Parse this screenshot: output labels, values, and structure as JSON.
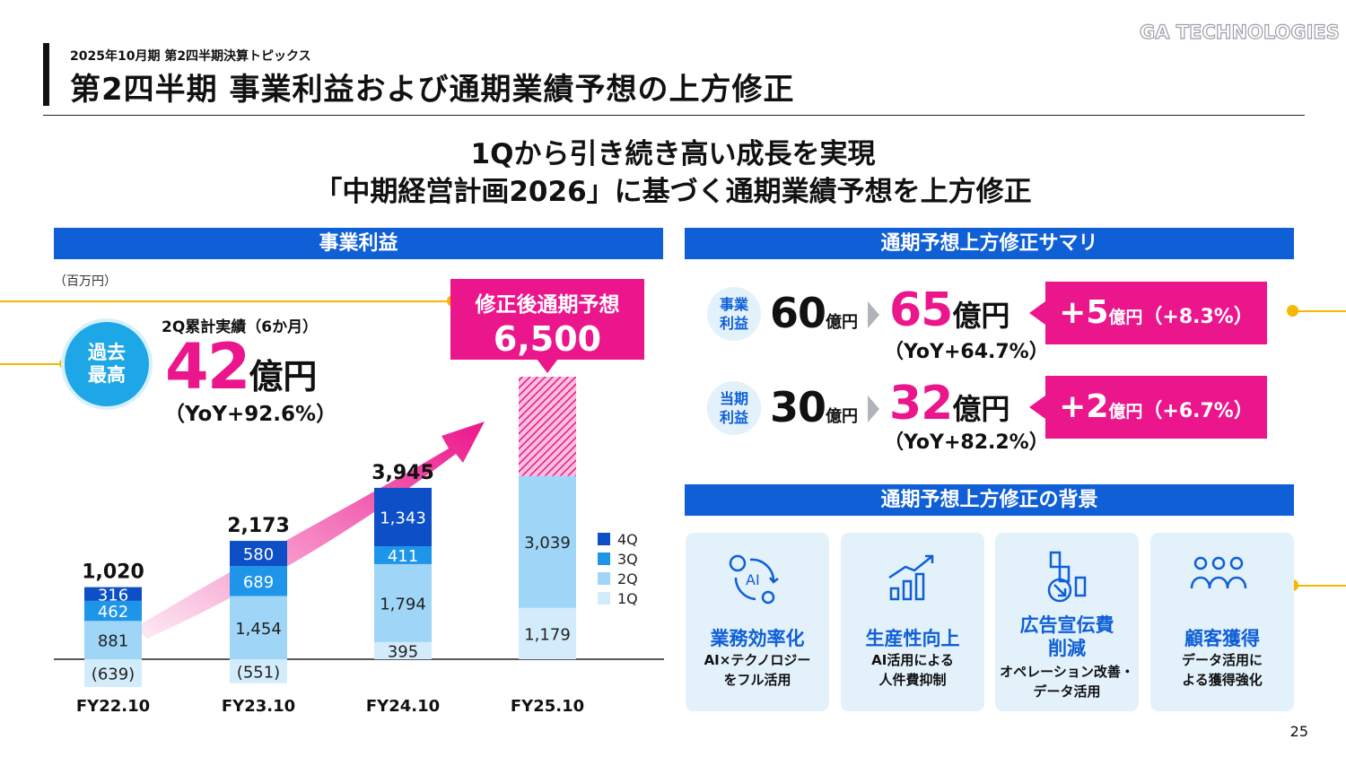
{
  "header": {
    "subtitle": "2025年10月期 第2四半期決算トピックス",
    "title": "第2四半期 事業利益および通期業績予想の上方修正",
    "logo": "GA TECHNOLOGIES"
  },
  "tagline": {
    "line1": "1Qから引き続き高い成長を実現",
    "line2": "「中期経営計画2026」に基づく通期業績予想を上方修正"
  },
  "left_panel": {
    "heading": "事業利益",
    "units": "（百万円）",
    "record_badge": {
      "line1": "過去",
      "line2": "最高"
    },
    "cumulative": {
      "label": "2Q累計実績（6か月）",
      "value": "42",
      "unit": "億円",
      "yoy": "（YoY+92.6%）"
    },
    "forecast_callout": {
      "label": "修正後通期予想",
      "value": "6,500"
    }
  },
  "chart_data": {
    "type": "bar",
    "stacked": true,
    "categories": [
      "FY22.10",
      "FY23.10",
      "FY24.10",
      "FY25.10"
    ],
    "series": [
      {
        "name": "1Q",
        "values": [
          -639,
          -551,
          395,
          1179
        ],
        "labels": [
          "(639)",
          "(551)",
          "395",
          "1,179"
        ],
        "color": "#d3ecfb"
      },
      {
        "name": "2Q",
        "values": [
          881,
          1454,
          1794,
          3039
        ],
        "labels": [
          "881",
          "1,454",
          "1,794",
          "3,039"
        ],
        "color": "#9fd5f7"
      },
      {
        "name": "3Q",
        "values": [
          462,
          689,
          411,
          null
        ],
        "labels": [
          "462",
          "689",
          "411",
          ""
        ],
        "color": "#1e95e9"
      },
      {
        "name": "4Q",
        "values": [
          316,
          580,
          1343,
          null
        ],
        "labels": [
          "316",
          "580",
          "1,343",
          ""
        ],
        "color": "#0d4fc7"
      }
    ],
    "forecast_remainder": {
      "category": "FY25.10",
      "value": 2282,
      "color": "#ec168c",
      "pattern": "hatched"
    },
    "totals": [
      "1,020",
      "2,173",
      "3,945",
      ""
    ],
    "legend": [
      "4Q",
      "3Q",
      "2Q",
      "1Q"
    ],
    "legend_position": "right",
    "grid": false,
    "ylim": [
      -750,
      6600
    ],
    "trend_arrow_color": "#ec168c"
  },
  "summary": {
    "heading": "通期予想上方修正サマリ",
    "rows": [
      {
        "label1": "事業",
        "label2": "利益",
        "old_value": "60",
        "old_unit": "億円",
        "new_value": "65",
        "new_unit": "億円",
        "yoy": "（YoY+64.7%）",
        "delta_value": "+5",
        "delta_unit": "億円",
        "delta_pct": "（+8.3%）"
      },
      {
        "label1": "当期",
        "label2": "利益",
        "old_value": "30",
        "old_unit": "億円",
        "new_value": "32",
        "new_unit": "億円",
        "yoy": "（YoY+82.2%）",
        "delta_value": "+2",
        "delta_unit": "億円",
        "delta_pct": "（+6.7%）"
      }
    ]
  },
  "background": {
    "heading": "通期予想上方修正の背景",
    "cards": [
      {
        "icon": "ai-cycle-icon",
        "title1": "業務効率化",
        "title2": "",
        "sub1": "AI×テクノロジー",
        "sub2": "をフル活用"
      },
      {
        "icon": "growth-chart-icon",
        "title1": "生産性向上",
        "title2": "",
        "sub1": "AI活用による",
        "sub2": "人件費抑制"
      },
      {
        "icon": "cost-down-icon",
        "title1": "広告宣伝費",
        "title2": "削減",
        "sub1": "オペレーション改善・",
        "sub2": "データ活用"
      },
      {
        "icon": "users-icon",
        "title1": "顧客獲得",
        "title2": "",
        "sub1": "データ活用に",
        "sub2": "よる獲得強化"
      }
    ]
  },
  "page_number": "25"
}
